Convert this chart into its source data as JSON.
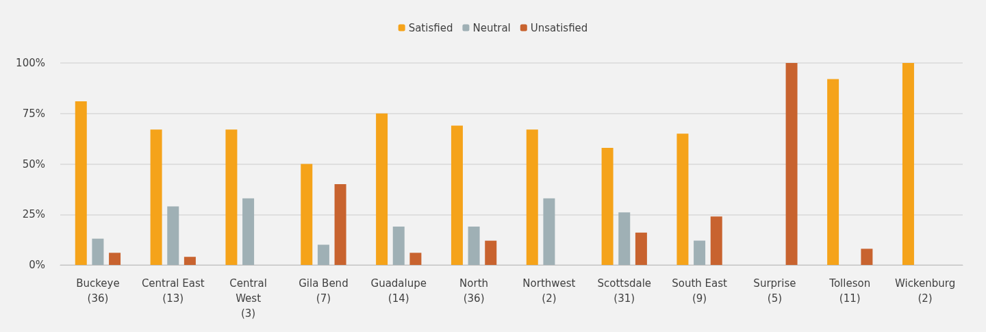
{
  "chart_data": {
    "type": "bar",
    "categories": [
      "Buckeye\n(36)",
      "Central East\n(13)",
      "Central\nWest\n(3)",
      "Gila Bend\n(7)",
      "Guadalupe\n(14)",
      "North\n(36)",
      "Northwest\n(2)",
      "Scottsdale\n(31)",
      "South East\n(9)",
      "Surprise\n(5)",
      "Tolleson\n(11)",
      "Wickenburg\n(2)"
    ],
    "series": [
      {
        "name": "Satisfied",
        "color": "#f5a31a",
        "values": [
          81,
          67,
          67,
          50,
          75,
          69,
          67,
          58,
          65,
          0,
          92,
          100
        ]
      },
      {
        "name": "Neutral",
        "color": "#9fb0b5",
        "values": [
          13,
          29,
          33,
          10,
          19,
          19,
          33,
          26,
          12,
          0,
          0,
          0
        ]
      },
      {
        "name": "Unsatisfied",
        "color": "#c8632f",
        "values": [
          6,
          4,
          0,
          40,
          6,
          12,
          0,
          16,
          24,
          100,
          8,
          0
        ]
      }
    ],
    "ylim": [
      0,
      100
    ],
    "yticks": [
      {
        "value": 0,
        "label": "0%"
      },
      {
        "value": 25,
        "label": "25%"
      },
      {
        "value": 50,
        "label": "50%"
      },
      {
        "value": 75,
        "label": "75%"
      },
      {
        "value": 100,
        "label": "100%"
      }
    ],
    "grid": "y",
    "legend": "top"
  }
}
